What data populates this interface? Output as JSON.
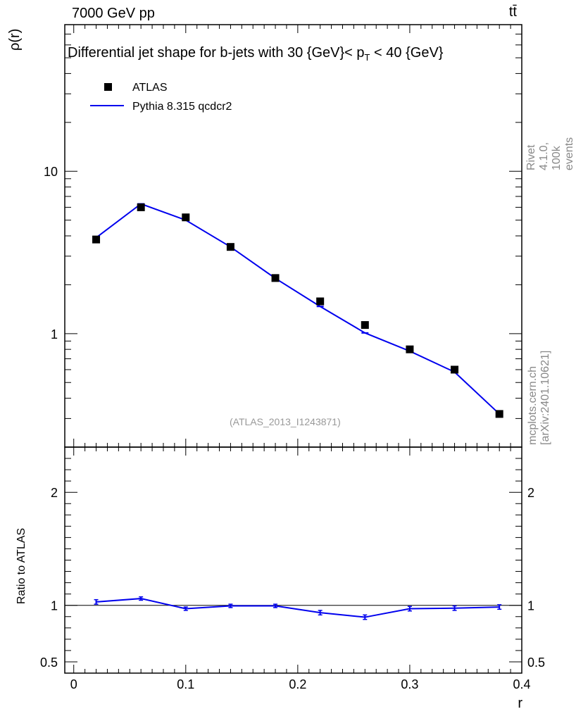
{
  "header": {
    "left": "7000 GeV pp",
    "right": "tt̄"
  },
  "side_labels": {
    "rivet": "Rivet 4.1.0,  100k events",
    "mcplots": "mcplots.cern.ch [arXiv:2401.10621]"
  },
  "analysis_tag": "(ATLAS_2013_I1243871)",
  "chart_data": [
    {
      "panel": "main",
      "type": "line",
      "title_main": "Differential jet shape for b-jets with 30 {GeV}< p",
      "title_sub": "T",
      "title_tail": " < 40 {GeV}",
      "ylabel": "ρ(r)",
      "yscale": "log",
      "ylim": [
        0.2,
        80
      ],
      "xlim": [
        -0.008,
        0.4
      ],
      "ytick_labels": [
        {
          "value": 1,
          "label": "1"
        },
        {
          "value": 10,
          "label": "10"
        }
      ],
      "legend": {
        "placement": "top-left",
        "data_label": "ATLAS",
        "mc_label": "Pythia 8.315 qcdcr2"
      },
      "x": [
        0.02,
        0.06,
        0.1,
        0.14,
        0.18,
        0.22,
        0.26,
        0.3,
        0.34,
        0.38
      ],
      "series": [
        {
          "name": "ATLAS",
          "style": "markers",
          "color": "#000000",
          "values": [
            3.8,
            6.0,
            5.2,
            3.42,
            2.2,
            1.58,
            1.13,
            0.8,
            0.6,
            0.32
          ]
        },
        {
          "name": "Pythia 8.315 qcdcr2",
          "style": "line",
          "color": "#0000ee",
          "values": [
            3.9,
            6.3,
            5.0,
            3.42,
            2.19,
            1.47,
            1.01,
            0.78,
            0.58,
            0.32
          ]
        }
      ]
    },
    {
      "panel": "ratio",
      "type": "line",
      "ylabel": "Ratio to ATLAS",
      "xlabel": "r",
      "ylim": [
        0.4,
        2.4
      ],
      "ytick_labels": [
        {
          "value": 0.5,
          "label": "0.5"
        },
        {
          "value": 1,
          "label": "1"
        },
        {
          "value": 2,
          "label": "2"
        }
      ],
      "xtick_labels": [
        {
          "value": 0,
          "label": "0"
        },
        {
          "value": 0.1,
          "label": "0.1"
        },
        {
          "value": 0.2,
          "label": "0.2"
        },
        {
          "value": 0.3,
          "label": "0.3"
        },
        {
          "value": 0.4,
          "label": "0.4"
        }
      ],
      "x": [
        0.02,
        0.06,
        0.1,
        0.14,
        0.18,
        0.22,
        0.26,
        0.3,
        0.34,
        0.38
      ],
      "series": [
        {
          "name": "Pythia 8.315 qcdcr2 / ATLAS",
          "color": "#0000ee",
          "values": [
            1.03,
            1.06,
            0.97,
            0.995,
            0.995,
            0.935,
            0.895,
            0.97,
            0.975,
            0.985
          ],
          "errors": [
            0.02,
            0.015,
            0.015,
            0.015,
            0.015,
            0.02,
            0.02,
            0.02,
            0.02,
            0.02
          ]
        }
      ]
    }
  ]
}
